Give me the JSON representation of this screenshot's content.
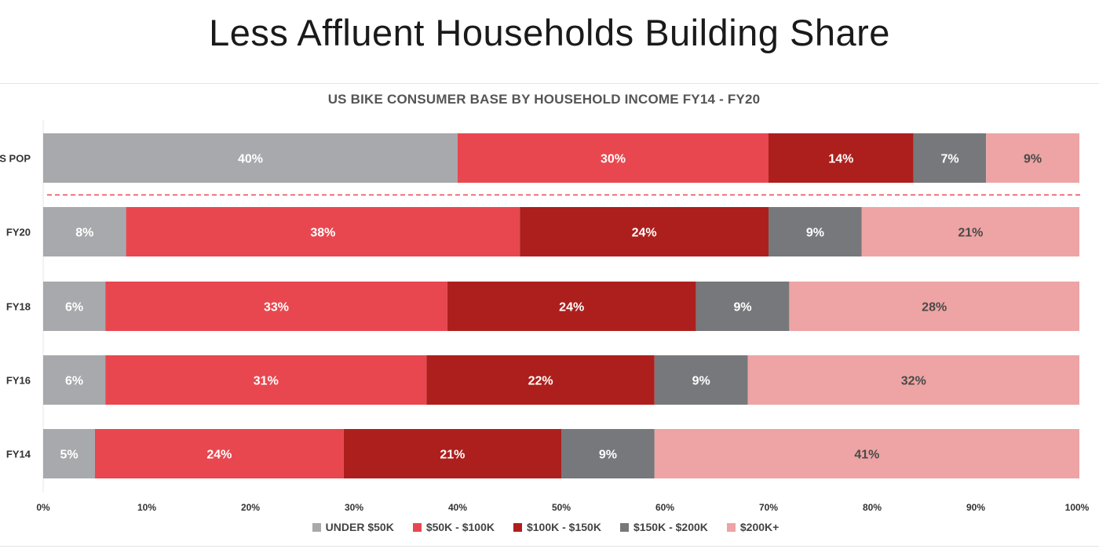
{
  "page_title": "Less Affluent Households Building Share",
  "chart_data": {
    "type": "bar",
    "orientation": "horizontal",
    "stacked": true,
    "title": "US BIKE CONSUMER BASE BY HOUSEHOLD INCOME FY14 - FY20",
    "categories": [
      "US POP",
      "FY20",
      "FY18",
      "FY16",
      "FY14"
    ],
    "series": [
      {
        "name": "UNDER $50K",
        "color": "#a7a9ac",
        "label_color": "#ffffff",
        "values": [
          40,
          8,
          6,
          6,
          5
        ],
        "labels": [
          "40%",
          "8%",
          "6%",
          "6%",
          "5%"
        ]
      },
      {
        "name": "$50K - $100K",
        "color": "#e8474f",
        "label_color": "#ffffff",
        "values": [
          30,
          38,
          33,
          31,
          24
        ],
        "labels": [
          "30%",
          "38%",
          "33%",
          "31%",
          "24%"
        ]
      },
      {
        "name": "$100K - $150K",
        "color": "#ad1f1c",
        "label_color": "#ffffff",
        "values": [
          14,
          24,
          24,
          22,
          21
        ],
        "labels": [
          "14%",
          "24%",
          "24%",
          "22%",
          "21%"
        ]
      },
      {
        "name": "$150K - $200K",
        "color": "#77787b",
        "label_color": "#ffffff",
        "values": [
          7,
          9,
          9,
          9,
          9
        ],
        "labels": [
          "7%",
          "9%",
          "9%",
          "9%",
          "9%"
        ]
      },
      {
        "name": "$200K+",
        "color": "#eea4a4",
        "label_color": "#4a4a4a",
        "values": [
          9,
          21,
          28,
          32,
          41
        ],
        "labels": [
          "9%",
          "21%",
          "28%",
          "32%",
          "41%"
        ]
      }
    ],
    "xlim": [
      0,
      100
    ],
    "x_ticks": [
      "0%",
      "10%",
      "20%",
      "30%",
      "40%",
      "50%",
      "60%",
      "70%",
      "80%",
      "90%",
      "100%"
    ],
    "separator_after_category": "US POP",
    "separator_color": "#e8474f",
    "legend_position": "bottom",
    "grid": false
  }
}
